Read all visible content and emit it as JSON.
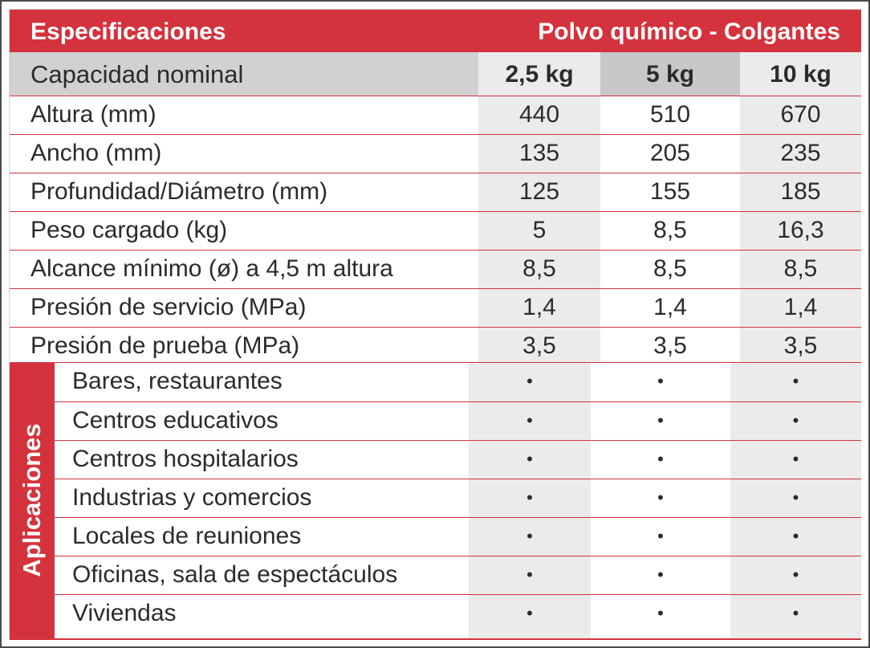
{
  "header": {
    "title": "Especificaciones",
    "product": "Polvo químico - Colgantes"
  },
  "capacity": {
    "label": "Capacidad nominal",
    "columns": [
      "2,5 kg",
      "5 kg",
      "10 kg"
    ]
  },
  "specs": [
    {
      "label": "Altura (mm)",
      "values": [
        "440",
        "510",
        "670"
      ]
    },
    {
      "label": "Ancho (mm)",
      "values": [
        "135",
        "205",
        "235"
      ]
    },
    {
      "label": "Profundidad/Diámetro (mm)",
      "values": [
        "125",
        "155",
        "185"
      ]
    },
    {
      "label": "Peso cargado (kg)",
      "values": [
        "5",
        "8,5",
        "16,3"
      ]
    },
    {
      "label": "Alcance mínimo (ø) a 4,5 m altura",
      "values": [
        "8,5",
        "8,5",
        "8,5"
      ]
    },
    {
      "label": "Presión de servicio (MPa)",
      "values": [
        "1,4",
        "1,4",
        "1,4"
      ]
    },
    {
      "label": "Presión de prueba (MPa)",
      "values": [
        "3,5",
        "3,5",
        "3,5"
      ]
    }
  ],
  "applications": {
    "title": "Aplicaciones",
    "mark": "•",
    "items": [
      "Bares, restaurantes",
      "Centros educativos",
      "Centros hospitalarios",
      "Industrias y comercios",
      "Locales de reuniones",
      "Oficinas, sala de espectáculos",
      "Viviendas"
    ]
  },
  "colors": {
    "accent": "#d4323c",
    "header_gray": "#d1d1d1",
    "cell_gray": "#ebebeb",
    "text": "#2b2b2b"
  }
}
